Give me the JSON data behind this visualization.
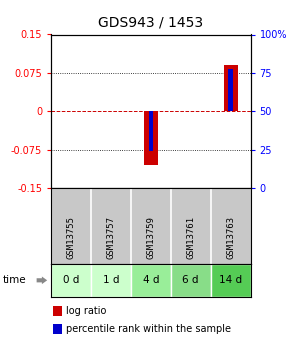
{
  "title": "GDS943 / 1453",
  "samples": [
    "GSM13755",
    "GSM13757",
    "GSM13759",
    "GSM13761",
    "GSM13763"
  ],
  "time_labels": [
    "0 d",
    "1 d",
    "4 d",
    "6 d",
    "14 d"
  ],
  "time_colors": [
    "#ccffcc",
    "#ccffcc",
    "#99ee99",
    "#88dd88",
    "#55cc55"
  ],
  "log_ratios": [
    0.0,
    0.0,
    -0.105,
    0.0,
    0.09
  ],
  "percentile_ranks_scaled": [
    0.0,
    0.0,
    -0.078,
    0.0,
    0.083
  ],
  "bar_width": 0.35,
  "pct_bar_width": 0.12,
  "ylim": [
    -0.15,
    0.15
  ],
  "right_ylim": [
    0,
    100
  ],
  "yticks_left": [
    -0.15,
    -0.075,
    0,
    0.075,
    0.15
  ],
  "yticks_right": [
    0,
    25,
    50,
    75,
    100
  ],
  "ytick_labels_left": [
    "-0.15",
    "-0.075",
    "0",
    "0.075",
    "0.15"
  ],
  "ytick_labels_right": [
    "0",
    "25",
    "50",
    "75",
    "100%"
  ],
  "color_log_ratio": "#cc0000",
  "color_percentile": "#0000cc",
  "color_zero_line": "#cc0000",
  "color_grid": "#000000",
  "sample_bg_color": "#c8c8c8",
  "title_fontsize": 10,
  "tick_fontsize": 7,
  "legend_fontsize": 7,
  "sample_fontsize": 6.5,
  "time_fontsize": 7.5
}
